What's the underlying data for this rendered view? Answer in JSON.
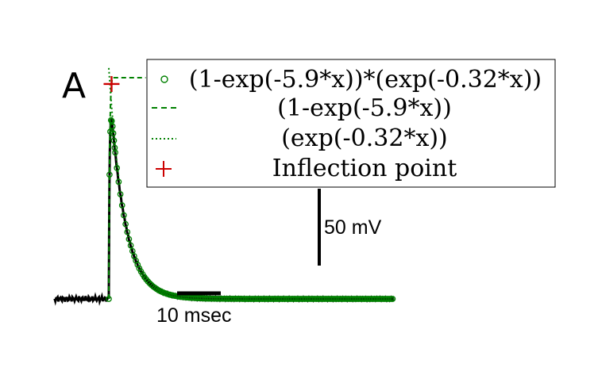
{
  "chart_data": {
    "type": "line",
    "panel_label": "A",
    "scale_bars": {
      "time_label": "10 msec",
      "time_value_ms": 10,
      "voltage_label": "50 mV",
      "voltage_value_mv": 50
    },
    "fit_function": {
      "rise_rate": 5.9,
      "decay_rate": 0.32,
      "onset_ms": 0
    },
    "x_range_ms": [
      -11,
      58
    ],
    "y_range_normalized": [
      0,
      1.04
    ],
    "inflection_point": {
      "x": 0.56,
      "y": 0.8
    },
    "series": [
      {
        "name": "(1-exp(-5.9*x))*(exp(-0.32*x))",
        "style": "circles",
        "color": "#008000"
      },
      {
        "name": "(1-exp(-5.9*x))",
        "style": "dashed",
        "color": "#008000"
      },
      {
        "name": "(exp(-0.32*x))",
        "style": "dotted",
        "color": "#008000"
      },
      {
        "name": "Inflection point",
        "style": "plus",
        "color": "#cc0000"
      }
    ],
    "recorded_trace": {
      "color": "#000000",
      "baseline_noise": true
    }
  }
}
